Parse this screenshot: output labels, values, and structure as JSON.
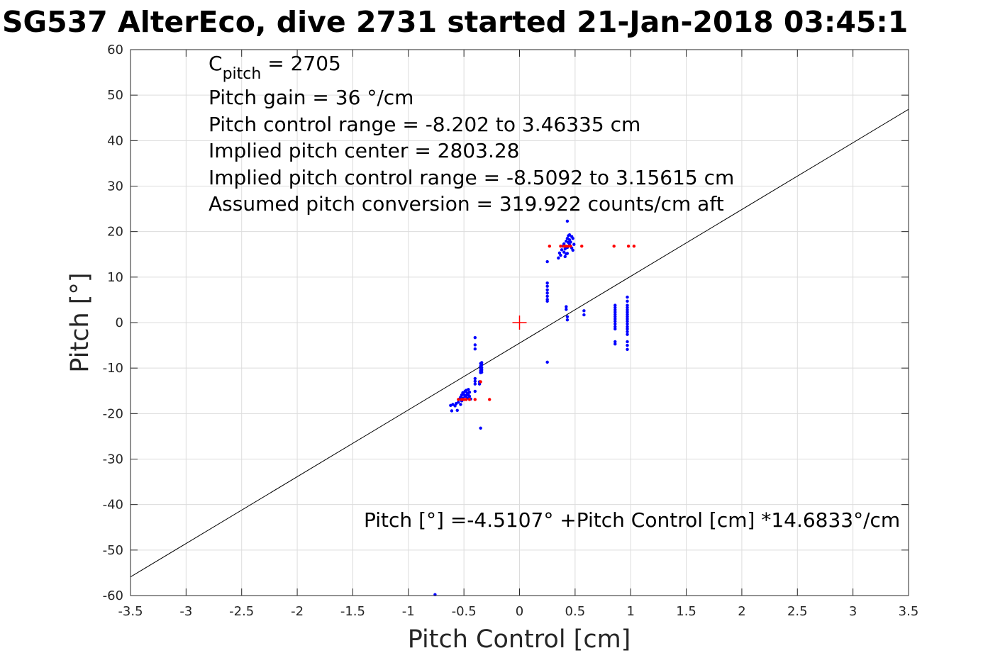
{
  "chart_data": {
    "type": "scatter",
    "title": "SG537 AlterEco, dive 2731 started 21-Jan-2018 03:45:1",
    "xlabel": "Pitch Control [cm]",
    "ylabel": "Pitch [°]",
    "xlim": [
      -3.5,
      3.5
    ],
    "ylim": [
      -60,
      60
    ],
    "xticks": [
      -3.5,
      -3,
      -2.5,
      -2,
      -1.5,
      -1,
      -0.5,
      0,
      0.5,
      1,
      1.5,
      2,
      2.5,
      3,
      3.5
    ],
    "xtick_labels": [
      "-3.5",
      "-3",
      "-2.5",
      "-2",
      "-1.5",
      "-1",
      "-0.5",
      "0",
      "0.5",
      "1",
      "1.5",
      "2",
      "2.5",
      "3",
      "3.5"
    ],
    "yticks": [
      -60,
      -50,
      -40,
      -30,
      -20,
      -10,
      0,
      10,
      20,
      30,
      40,
      50,
      60
    ],
    "ytick_labels": [
      "-60",
      "-50",
      "-40",
      "-30",
      "-20",
      "-10",
      "0",
      "10",
      "20",
      "30",
      "40",
      "50",
      "60"
    ],
    "grid": true,
    "annotations": {
      "cpitch_main": "C",
      "cpitch_sub": "pitch",
      "cpitch_value": " = 2705",
      "lines": [
        "Pitch gain = 36 °/cm",
        "Pitch control range = -8.202 to 3.46335 cm",
        "Implied pitch center = 2803.28",
        "Implied pitch control range = -8.5092 to 3.15615 cm",
        "Assumed pitch conversion = 319.922 counts/cm aft"
      ],
      "fit_equation": "Pitch [°] =-4.5107° +Pitch Control [cm] *14.6833°/cm"
    },
    "fit_line": {
      "intercept": -4.5107,
      "slope": 14.6833
    },
    "center_marker": {
      "x": 0,
      "y": 0
    },
    "series": [
      {
        "color": "#0000ff",
        "points": [
          [
            -0.62,
            -18.2
          ],
          [
            -0.61,
            -19.4
          ],
          [
            -0.6,
            -18.0
          ],
          [
            -0.58,
            -18.3
          ],
          [
            -0.57,
            -17.8
          ],
          [
            -0.56,
            -19.3
          ],
          [
            -0.55,
            -17.5
          ],
          [
            -0.54,
            -16.8
          ],
          [
            -0.53,
            -18.0
          ],
          [
            -0.53,
            -16.4
          ],
          [
            -0.52,
            -17.2
          ],
          [
            -0.52,
            -15.9
          ],
          [
            -0.51,
            -16.6
          ],
          [
            -0.51,
            -15.4
          ],
          [
            -0.5,
            -16.9
          ],
          [
            -0.5,
            -15.8
          ],
          [
            -0.49,
            -16.2
          ],
          [
            -0.49,
            -15.1
          ],
          [
            -0.48,
            -16.0
          ],
          [
            -0.48,
            -14.9
          ],
          [
            -0.47,
            -15.5
          ],
          [
            -0.47,
            -16.6
          ],
          [
            -0.46,
            -14.7
          ],
          [
            -0.46,
            -15.9
          ],
          [
            -0.45,
            -16.2
          ],
          [
            -0.45,
            -15.3
          ],
          [
            -0.44,
            -16.8
          ],
          [
            -0.4,
            -3.3
          ],
          [
            -0.4,
            -4.9
          ],
          [
            -0.4,
            -5.8
          ],
          [
            -0.4,
            -12.3
          ],
          [
            -0.4,
            -12.9
          ],
          [
            -0.4,
            -13.5
          ],
          [
            -0.4,
            -15.1
          ],
          [
            -0.36,
            -13.0
          ],
          [
            -0.36,
            -13.5
          ],
          [
            -0.35,
            -9.0
          ],
          [
            -0.35,
            -9.6
          ],
          [
            -0.35,
            -10.1
          ],
          [
            -0.35,
            -10.6
          ],
          [
            -0.35,
            -11.0
          ],
          [
            -0.34,
            -8.8
          ],
          [
            -0.34,
            -9.3
          ],
          [
            -0.34,
            -9.9
          ],
          [
            -0.34,
            -10.4
          ],
          [
            -0.34,
            -10.9
          ],
          [
            -0.35,
            -23.2
          ],
          [
            -0.76,
            -59.8
          ],
          [
            0.25,
            13.4
          ],
          [
            0.25,
            8.7
          ],
          [
            0.25,
            8.0
          ],
          [
            0.25,
            7.2
          ],
          [
            0.25,
            6.5
          ],
          [
            0.25,
            5.8
          ],
          [
            0.25,
            5.1
          ],
          [
            0.25,
            4.7
          ],
          [
            0.25,
            -8.7
          ],
          [
            0.35,
            14.2
          ],
          [
            0.36,
            15.3
          ],
          [
            0.37,
            14.8
          ],
          [
            0.38,
            16.0
          ],
          [
            0.39,
            16.8
          ],
          [
            0.4,
            15.5
          ],
          [
            0.4,
            17.3
          ],
          [
            0.41,
            16.2
          ],
          [
            0.41,
            14.5
          ],
          [
            0.42,
            15.1
          ],
          [
            0.42,
            17.9
          ],
          [
            0.43,
            18.5
          ],
          [
            0.43,
            16.5
          ],
          [
            0.43,
            15.2
          ],
          [
            0.44,
            19.1
          ],
          [
            0.44,
            17.6
          ],
          [
            0.44,
            16.8
          ],
          [
            0.45,
            18.2
          ],
          [
            0.45,
            17.1
          ],
          [
            0.45,
            19.3
          ],
          [
            0.46,
            17.7
          ],
          [
            0.47,
            18.9
          ],
          [
            0.47,
            16.4
          ],
          [
            0.48,
            15.9
          ],
          [
            0.48,
            18.5
          ],
          [
            0.49,
            17.2
          ],
          [
            0.43,
            22.3
          ],
          [
            0.42,
            3.5
          ],
          [
            0.42,
            2.9
          ],
          [
            0.43,
            1.3
          ],
          [
            0.43,
            0.6
          ],
          [
            0.58,
            2.6
          ],
          [
            0.58,
            1.7
          ],
          [
            0.86,
            3.8
          ],
          [
            0.86,
            3.3
          ],
          [
            0.86,
            2.8
          ],
          [
            0.86,
            2.3
          ],
          [
            0.86,
            1.8
          ],
          [
            0.86,
            1.3
          ],
          [
            0.86,
            0.8
          ],
          [
            0.86,
            0.3
          ],
          [
            0.86,
            -0.3
          ],
          [
            0.86,
            -0.9
          ],
          [
            0.86,
            -1.4
          ],
          [
            0.86,
            -4.2
          ],
          [
            0.86,
            -4.7
          ],
          [
            0.97,
            5.6
          ],
          [
            0.97,
            4.7
          ],
          [
            0.97,
            3.8
          ],
          [
            0.97,
            3.3
          ],
          [
            0.97,
            2.8
          ],
          [
            0.97,
            2.3
          ],
          [
            0.97,
            1.8
          ],
          [
            0.97,
            1.3
          ],
          [
            0.97,
            0.8
          ],
          [
            0.97,
            0.3
          ],
          [
            0.97,
            -0.3
          ],
          [
            0.97,
            -0.9
          ],
          [
            0.97,
            -1.4
          ],
          [
            0.97,
            -2.0
          ],
          [
            0.97,
            -2.6
          ],
          [
            0.97,
            -4.2
          ],
          [
            0.97,
            -5.0
          ],
          [
            0.97,
            -5.9
          ]
        ]
      },
      {
        "color": "#ff0000",
        "points": [
          [
            -0.55,
            -16.9
          ],
          [
            -0.52,
            -16.9
          ],
          [
            -0.5,
            -16.9
          ],
          [
            -0.48,
            -16.9
          ],
          [
            -0.45,
            -16.9
          ],
          [
            -0.4,
            -16.9
          ],
          [
            -0.35,
            -13.0
          ],
          [
            -0.27,
            -16.9
          ],
          [
            0.27,
            16.8
          ],
          [
            0.37,
            16.8
          ],
          [
            0.4,
            16.8
          ],
          [
            0.42,
            16.8
          ],
          [
            0.44,
            16.8
          ],
          [
            0.46,
            16.8
          ],
          [
            0.56,
            16.8
          ],
          [
            0.85,
            16.8
          ],
          [
            0.98,
            16.8
          ],
          [
            1.03,
            16.8
          ]
        ]
      }
    ]
  }
}
